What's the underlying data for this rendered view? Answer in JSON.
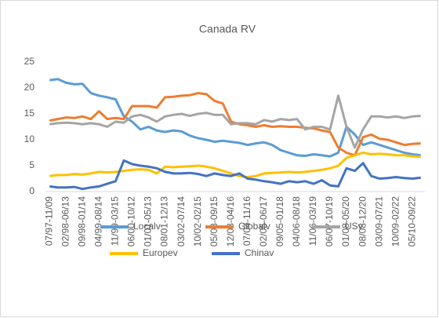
{
  "chart_data": {
    "type": "line",
    "title": "Canada RV",
    "categories": [
      "07/97-11/09",
      null,
      "02/98-06/13",
      null,
      "09/98-01/14",
      null,
      "04/99-08/14",
      null,
      "11/99-03/15",
      null,
      "06/00-10/12",
      null,
      "01/01-05/13",
      null,
      "08/01-12/13",
      null,
      "03/02-07/14",
      null,
      "10/02-02/15",
      null,
      "05/03-09/15",
      null,
      "12/03-04/16",
      null,
      "07/04-11/16",
      null,
      "02/05-06/17",
      null,
      "09/05-01/18",
      null,
      "04/06-08/18",
      null,
      "11/06-03/19",
      null,
      "06/07-10/19",
      null,
      "01/08-05/20",
      null,
      "08/08-12/20",
      null,
      "03/09-07/21",
      null,
      "10/09-02/22",
      null,
      "05/10-09/22",
      null
    ],
    "series": [
      {
        "name": "Localv",
        "color": "#5b9bd5",
        "values": [
          21.5,
          21.7,
          21.0,
          20.7,
          20.8,
          19.0,
          18.5,
          18.2,
          17.8,
          14.5,
          13.5,
          12.0,
          12.5,
          11.8,
          11.5,
          11.8,
          11.6,
          10.8,
          10.3,
          10.0,
          9.6,
          9.8,
          9.6,
          9.4,
          9.0,
          9.3,
          9.5,
          9.0,
          8.0,
          7.5,
          7.0,
          6.9,
          7.2,
          7.0,
          6.8,
          7.5,
          12.5,
          11.0,
          9.0,
          9.5,
          9.0,
          8.5,
          8.0,
          7.5,
          7.2,
          7.0
        ]
      },
      {
        "name": "Globalv",
        "color": "#ed7d31",
        "values": [
          13.7,
          14.0,
          14.3,
          14.2,
          14.5,
          14.0,
          15.5,
          14.0,
          14.2,
          14.0,
          16.5,
          16.5,
          16.5,
          16.2,
          18.2,
          18.3,
          18.5,
          18.6,
          19.0,
          18.8,
          17.5,
          17.0,
          13.5,
          13.0,
          12.8,
          12.5,
          12.8,
          12.5,
          12.6,
          12.5,
          12.5,
          12.3,
          12.2,
          11.8,
          11.5,
          8.5,
          7.5,
          7.0,
          10.5,
          11.0,
          10.2,
          10.0,
          9.5,
          9.0,
          9.2,
          9.3
        ]
      },
      {
        "name": "USv",
        "color": "#a5a5a5",
        "values": [
          13.0,
          13.2,
          13.3,
          13.2,
          13.0,
          13.2,
          13.0,
          12.5,
          13.5,
          13.3,
          14.5,
          14.8,
          14.3,
          13.5,
          14.5,
          14.8,
          15.0,
          14.6,
          15.0,
          15.2,
          14.8,
          14.8,
          13.0,
          13.2,
          13.2,
          13.0,
          13.8,
          13.5,
          14.0,
          13.8,
          14.0,
          12.0,
          12.5,
          12.5,
          12.0,
          18.5,
          12.5,
          8.5,
          12.0,
          14.5,
          14.5,
          14.3,
          14.5,
          14.2,
          14.5,
          14.6
        ]
      },
      {
        "name": "Europev",
        "color": "#ffc000",
        "values": [
          3.0,
          3.2,
          3.2,
          3.4,
          3.3,
          3.5,
          3.8,
          3.7,
          3.8,
          4.0,
          4.2,
          4.3,
          4.2,
          3.5,
          4.8,
          4.7,
          4.8,
          4.9,
          5.0,
          4.8,
          4.5,
          4.0,
          3.5,
          3.0,
          2.8,
          3.0,
          3.5,
          3.6,
          3.7,
          3.8,
          3.7,
          3.8,
          4.0,
          4.2,
          4.5,
          5.0,
          6.5,
          7.0,
          7.5,
          7.2,
          7.3,
          7.2,
          7.0,
          7.0,
          6.8,
          6.7
        ]
      },
      {
        "name": "Chinav",
        "color": "#4472c4",
        "values": [
          1.0,
          0.8,
          0.8,
          0.9,
          0.5,
          0.8,
          1.0,
          1.5,
          2.0,
          6.0,
          5.3,
          5.0,
          4.8,
          4.5,
          3.8,
          3.5,
          3.5,
          3.6,
          3.4,
          3.0,
          3.5,
          3.2,
          3.0,
          3.5,
          2.5,
          2.3,
          2.0,
          1.8,
          1.5,
          2.0,
          1.8,
          2.0,
          1.5,
          2.2,
          1.2,
          1.0,
          4.5,
          4.0,
          5.5,
          3.0,
          2.5,
          2.6,
          2.8,
          2.6,
          2.5,
          2.7
        ]
      }
    ],
    "ylim": [
      0,
      25
    ],
    "yticks": [
      0,
      5,
      10,
      15,
      20,
      25
    ],
    "grid": false,
    "legend": "bottom"
  }
}
